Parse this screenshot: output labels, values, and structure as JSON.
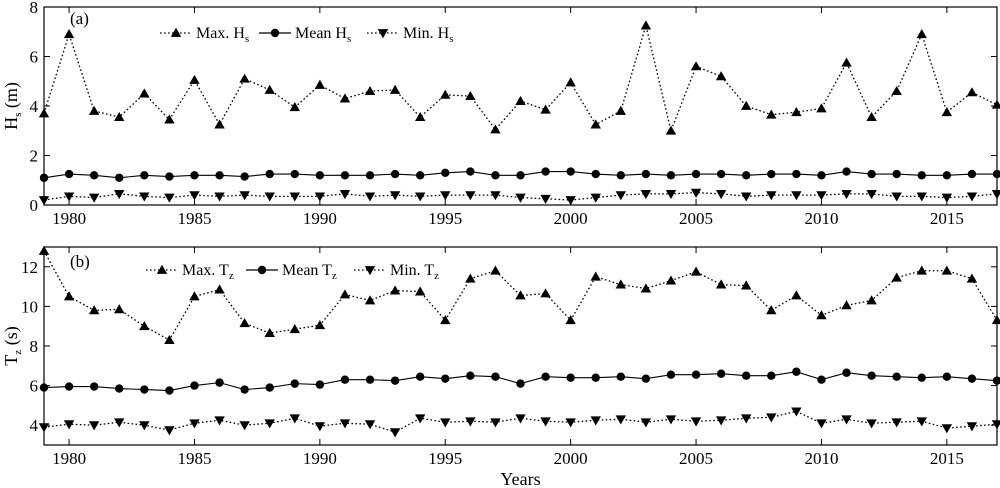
{
  "chart_data": [
    {
      "type": "line",
      "panel_label": "(a)",
      "ylabel": {
        "main": "H",
        "sub": "s",
        "unit": " (m)"
      },
      "xlim": [
        1979,
        2017
      ],
      "ylim": [
        0,
        8
      ],
      "xticks": [
        1980,
        1985,
        1990,
        1995,
        2000,
        2005,
        2010,
        2015
      ],
      "yticks": [
        0,
        2,
        4,
        6,
        8
      ],
      "grid": false,
      "legend": "top-left",
      "x": [
        1979,
        1980,
        1981,
        1982,
        1983,
        1984,
        1985,
        1986,
        1987,
        1988,
        1989,
        1990,
        1991,
        1992,
        1993,
        1994,
        1995,
        1996,
        1997,
        1998,
        1999,
        2000,
        2001,
        2002,
        2003,
        2004,
        2005,
        2006,
        2007,
        2008,
        2009,
        2010,
        2011,
        2012,
        2013,
        2014,
        2015,
        2016,
        2017
      ],
      "series": [
        {
          "name": {
            "main": "Max. H",
            "sub": "s"
          },
          "marker": "triangle-up",
          "line": "dotted",
          "values": [
            3.7,
            6.9,
            3.8,
            3.55,
            4.5,
            3.45,
            5.05,
            3.25,
            5.1,
            4.65,
            3.95,
            4.85,
            4.3,
            4.6,
            4.65,
            3.55,
            4.45,
            4.4,
            3.05,
            4.2,
            3.85,
            4.95,
            3.25,
            3.8,
            7.25,
            3.0,
            5.6,
            5.2,
            4.0,
            3.65,
            3.75,
            3.9,
            5.75,
            3.55,
            4.6,
            6.9,
            3.75,
            4.55,
            4.05
          ]
        },
        {
          "name": {
            "main": "Mean H",
            "sub": "s"
          },
          "marker": "circle",
          "line": "solid",
          "values": [
            1.1,
            1.25,
            1.2,
            1.1,
            1.2,
            1.15,
            1.2,
            1.2,
            1.15,
            1.25,
            1.25,
            1.2,
            1.2,
            1.2,
            1.25,
            1.2,
            1.3,
            1.35,
            1.2,
            1.2,
            1.35,
            1.35,
            1.25,
            1.2,
            1.25,
            1.2,
            1.25,
            1.25,
            1.2,
            1.25,
            1.25,
            1.2,
            1.35,
            1.25,
            1.25,
            1.2,
            1.2,
            1.25,
            1.25
          ]
        },
        {
          "name": {
            "main": "Min. H",
            "sub": "s"
          },
          "marker": "triangle-down",
          "line": "dotted",
          "values": [
            0.2,
            0.35,
            0.3,
            0.45,
            0.35,
            0.3,
            0.4,
            0.35,
            0.4,
            0.35,
            0.35,
            0.35,
            0.45,
            0.35,
            0.4,
            0.35,
            0.4,
            0.4,
            0.4,
            0.3,
            0.25,
            0.2,
            0.3,
            0.4,
            0.45,
            0.45,
            0.5,
            0.45,
            0.35,
            0.4,
            0.4,
            0.4,
            0.45,
            0.45,
            0.35,
            0.35,
            0.3,
            0.35,
            0.45
          ]
        }
      ]
    },
    {
      "type": "line",
      "panel_label": "(b)",
      "ylabel": {
        "main": "T",
        "sub": "z",
        "unit": " (s)"
      },
      "xlabel": "Years",
      "xlim": [
        1979,
        2017
      ],
      "ylim": [
        3,
        13
      ],
      "xticks": [
        1980,
        1985,
        1990,
        1995,
        2000,
        2005,
        2010,
        2015
      ],
      "yticks": [
        4,
        6,
        8,
        10,
        12
      ],
      "grid": false,
      "legend": "top-left",
      "x": [
        1979,
        1980,
        1981,
        1982,
        1983,
        1984,
        1985,
        1986,
        1987,
        1988,
        1989,
        1990,
        1991,
        1992,
        1993,
        1994,
        1995,
        1996,
        1997,
        1998,
        1999,
        2000,
        2001,
        2002,
        2003,
        2004,
        2005,
        2006,
        2007,
        2008,
        2009,
        2010,
        2011,
        2012,
        2013,
        2014,
        2015,
        2016,
        2017
      ],
      "series": [
        {
          "name": {
            "main": "Max. T",
            "sub": "z"
          },
          "marker": "triangle-up",
          "line": "dotted",
          "values": [
            12.8,
            10.5,
            9.8,
            9.85,
            9.0,
            8.3,
            10.5,
            10.85,
            9.15,
            8.65,
            8.85,
            9.05,
            10.6,
            10.3,
            10.8,
            10.75,
            9.3,
            11.4,
            11.8,
            10.55,
            10.65,
            9.3,
            11.5,
            11.1,
            10.9,
            11.3,
            11.75,
            11.1,
            11.05,
            9.8,
            10.55,
            9.55,
            10.05,
            10.3,
            11.45,
            11.8,
            11.8,
            11.4,
            9.3
          ]
        },
        {
          "name": {
            "main": "Mean T",
            "sub": "z"
          },
          "marker": "circle",
          "line": "solid",
          "values": [
            5.9,
            5.95,
            5.95,
            5.85,
            5.8,
            5.75,
            6.0,
            6.15,
            5.8,
            5.9,
            6.1,
            6.05,
            6.3,
            6.3,
            6.25,
            6.45,
            6.35,
            6.5,
            6.45,
            6.1,
            6.45,
            6.4,
            6.4,
            6.45,
            6.35,
            6.55,
            6.55,
            6.6,
            6.5,
            6.5,
            6.7,
            6.3,
            6.65,
            6.5,
            6.45,
            6.4,
            6.45,
            6.35,
            6.25
          ]
        },
        {
          "name": {
            "main": "Min. T",
            "sub": "z"
          },
          "marker": "triangle-down",
          "line": "dotted",
          "values": [
            3.9,
            4.05,
            4.0,
            4.15,
            4.0,
            3.75,
            4.1,
            4.25,
            4.0,
            4.1,
            4.35,
            3.95,
            4.1,
            4.05,
            3.65,
            4.35,
            4.15,
            4.2,
            4.15,
            4.35,
            4.2,
            4.15,
            4.25,
            4.3,
            4.15,
            4.3,
            4.2,
            4.25,
            4.35,
            4.4,
            4.7,
            4.1,
            4.3,
            4.1,
            4.15,
            4.2,
            3.85,
            3.95,
            4.05
          ]
        }
      ]
    }
  ]
}
